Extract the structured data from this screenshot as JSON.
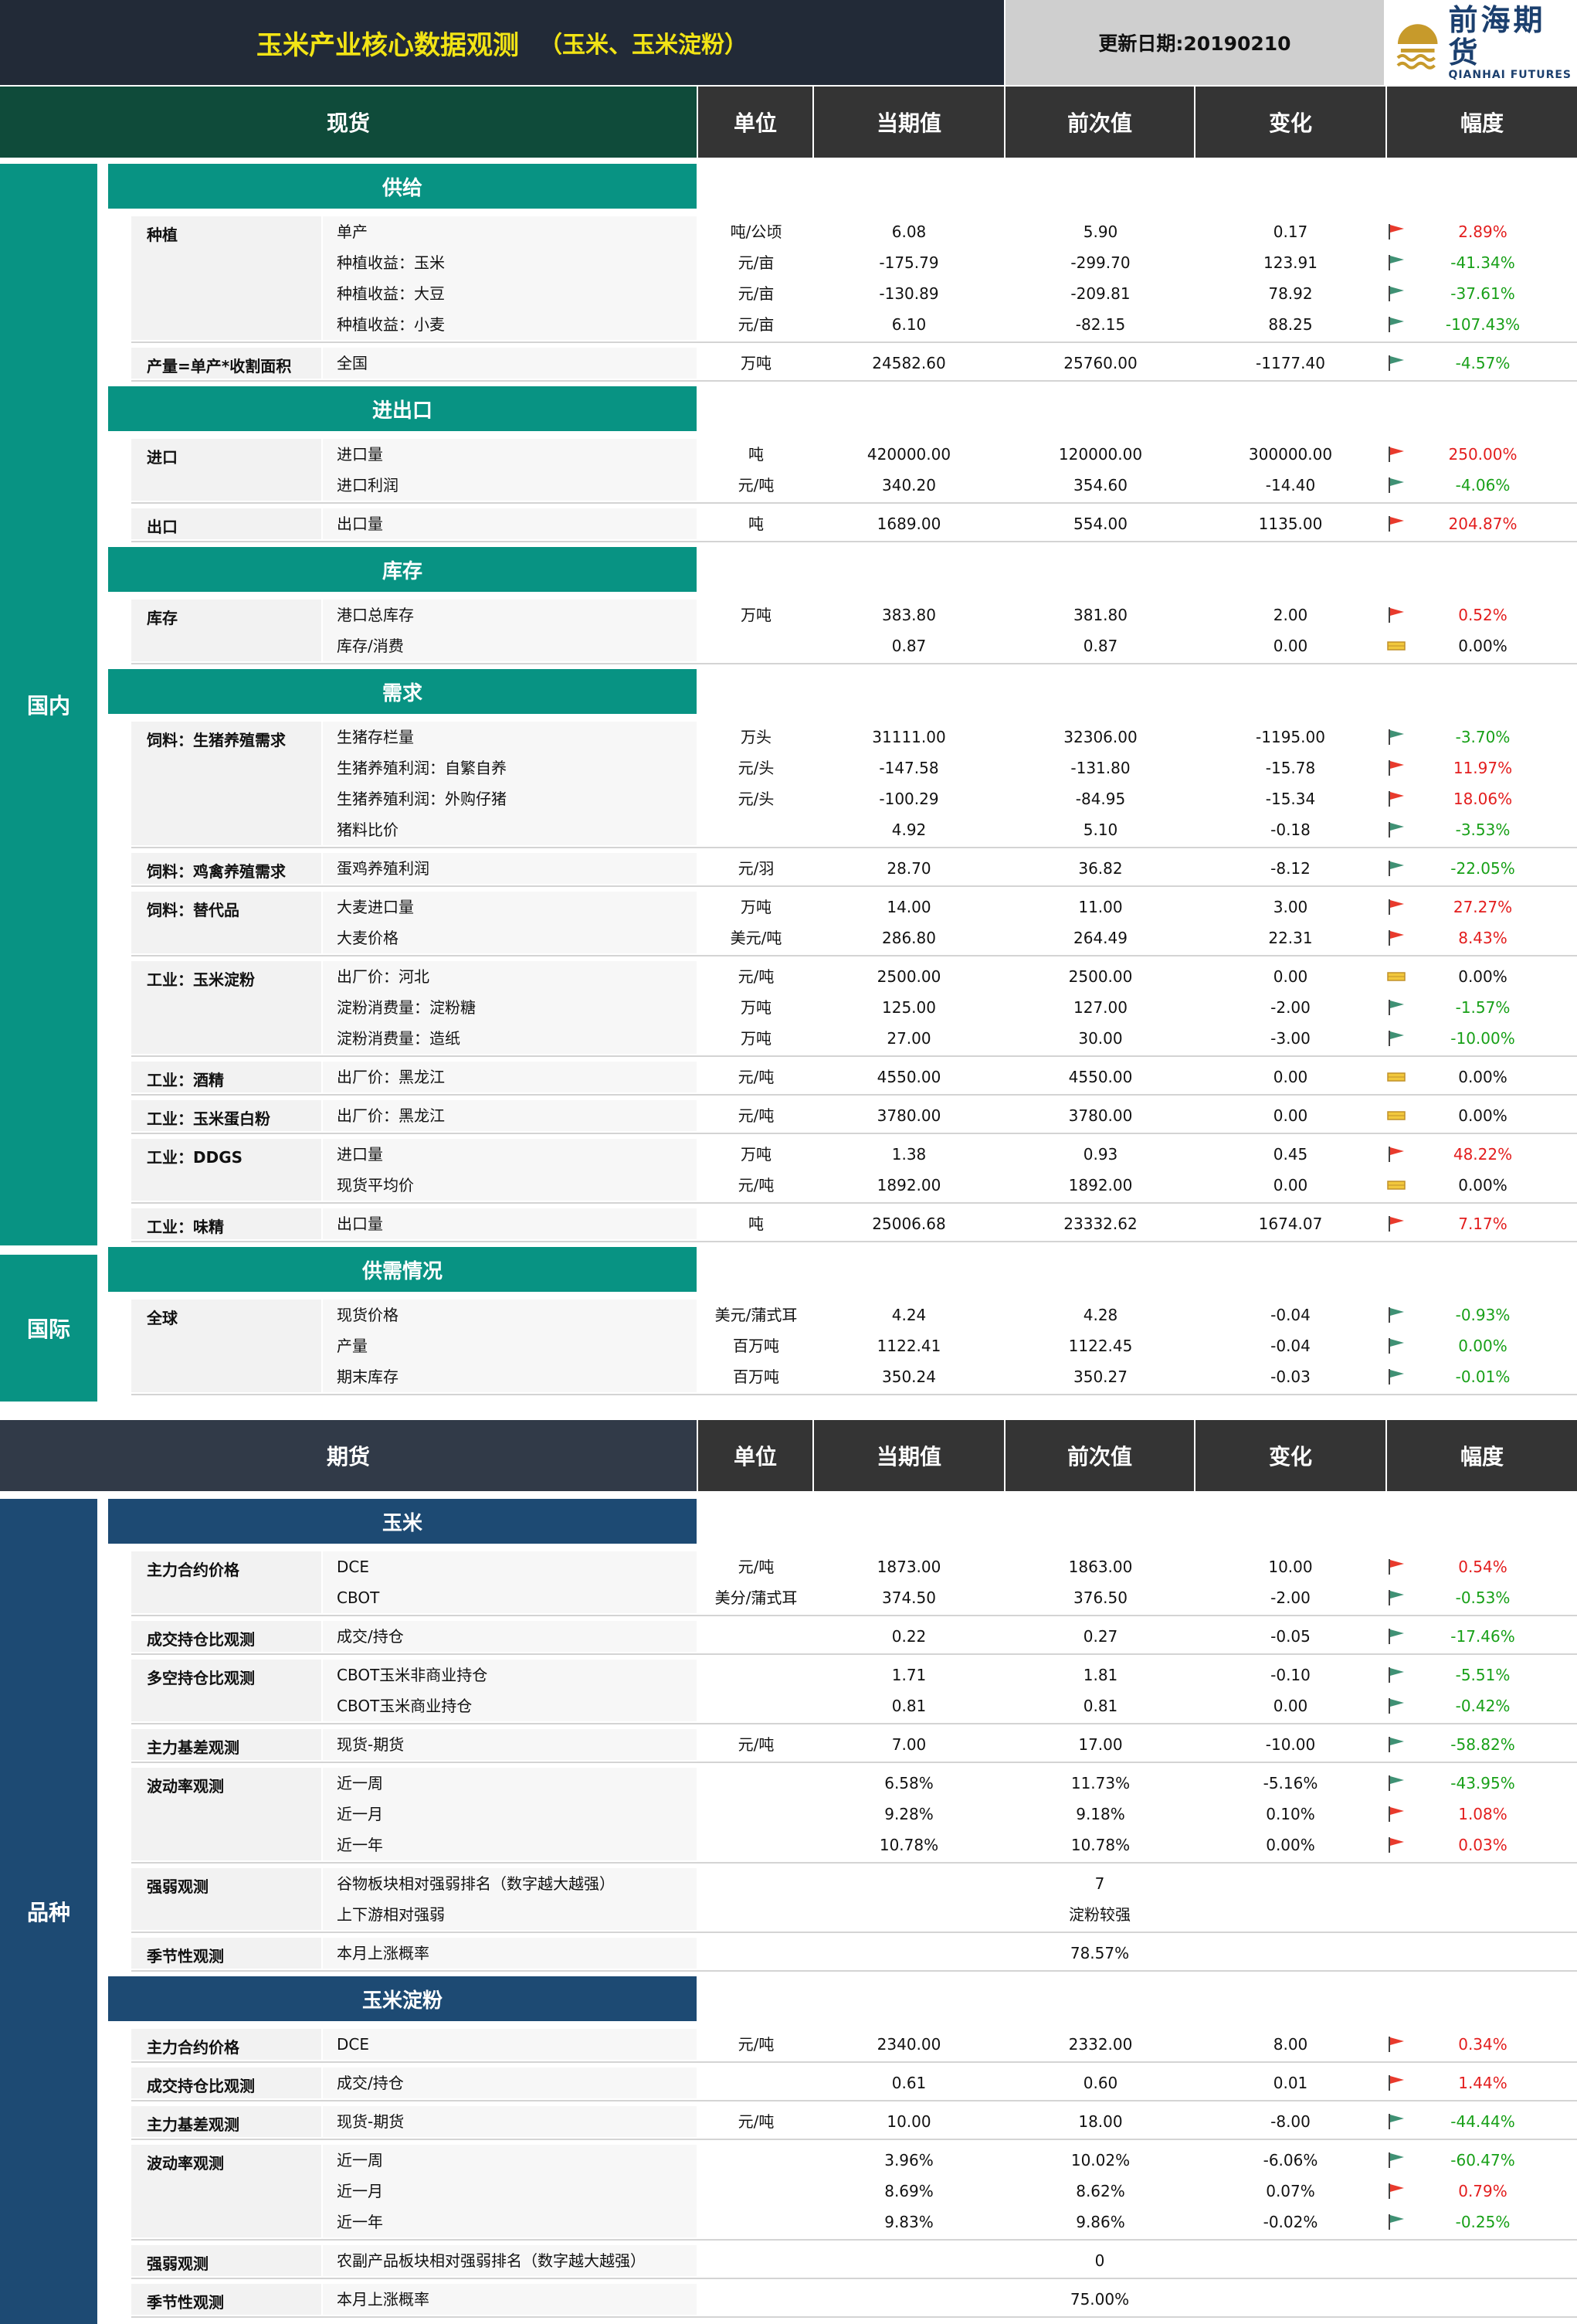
{
  "header": {
    "title": "玉米产业核心数据观测",
    "subtitle": "（玉米、玉米淀粉）",
    "update_date": "更新日期:20190210",
    "logo_cn": "前海期货",
    "logo_en": "QIANHAI FUTURES"
  },
  "colors": {
    "up": "#e31d1d",
    "down": "#18a018",
    "teal": "#089383",
    "navy": "#1d4a73"
  },
  "columns": {
    "unit": "单位",
    "current": "当期值",
    "previous": "前次值",
    "change": "变化",
    "pct": "幅度"
  },
  "spot": {
    "title": "现货",
    "domestic_label": "国内",
    "international_label": "国际",
    "categories": [
      {
        "name": "供给",
        "groups": [
          {
            "label": "种植",
            "rows": [
              {
                "item": "单产",
                "unit": "吨/公顷",
                "cur": "6.08",
                "prev": "5.90",
                "chg": "0.17",
                "pct": "2.89%",
                "dir": "up"
              },
              {
                "item": "种植收益：玉米",
                "unit": "元/亩",
                "cur": "-175.79",
                "prev": "-299.70",
                "chg": "123.91",
                "pct": "-41.34%",
                "dir": "down"
              },
              {
                "item": "种植收益：大豆",
                "unit": "元/亩",
                "cur": "-130.89",
                "prev": "-209.81",
                "chg": "78.92",
                "pct": "-37.61%",
                "dir": "down"
              },
              {
                "item": "种植收益：小麦",
                "unit": "元/亩",
                "cur": "6.10",
                "prev": "-82.15",
                "chg": "88.25",
                "pct": "-107.43%",
                "dir": "down"
              }
            ]
          },
          {
            "label": "产量=单产*收割面积",
            "rows": [
              {
                "item": "全国",
                "unit": "万吨",
                "cur": "24582.60",
                "prev": "25760.00",
                "chg": "-1177.40",
                "pct": "-4.57%",
                "dir": "down"
              }
            ]
          }
        ]
      },
      {
        "name": "进出口",
        "groups": [
          {
            "label": "进口",
            "rows": [
              {
                "item": "进口量",
                "unit": "吨",
                "cur": "420000.00",
                "prev": "120000.00",
                "chg": "300000.00",
                "pct": "250.00%",
                "dir": "up"
              },
              {
                "item": "进口利润",
                "unit": "元/吨",
                "cur": "340.20",
                "prev": "354.60",
                "chg": "-14.40",
                "pct": "-4.06%",
                "dir": "down"
              }
            ]
          },
          {
            "label": "出口",
            "rows": [
              {
                "item": "出口量",
                "unit": "吨",
                "cur": "1689.00",
                "prev": "554.00",
                "chg": "1135.00",
                "pct": "204.87%",
                "dir": "up"
              }
            ]
          }
        ]
      },
      {
        "name": "库存",
        "groups": [
          {
            "label": "库存",
            "rows": [
              {
                "item": "港口总库存",
                "unit": "万吨",
                "cur": "383.80",
                "prev": "381.80",
                "chg": "2.00",
                "pct": "0.52%",
                "dir": "up"
              },
              {
                "item": "库存/消费",
                "unit": "",
                "cur": "0.87",
                "prev": "0.87",
                "chg": "0.00",
                "pct": "0.00%",
                "dir": "flat"
              }
            ]
          }
        ]
      },
      {
        "name": "需求",
        "groups": [
          {
            "label": "饲料：生猪养殖需求",
            "rows": [
              {
                "item": "生猪存栏量",
                "unit": "万头",
                "cur": "31111.00",
                "prev": "32306.00",
                "chg": "-1195.00",
                "pct": "-3.70%",
                "dir": "down"
              },
              {
                "item": "生猪养殖利润：自繁自养",
                "unit": "元/头",
                "cur": "-147.58",
                "prev": "-131.80",
                "chg": "-15.78",
                "pct": "11.97%",
                "dir": "up"
              },
              {
                "item": "生猪养殖利润：外购仔猪",
                "unit": "元/头",
                "cur": "-100.29",
                "prev": "-84.95",
                "chg": "-15.34",
                "pct": "18.06%",
                "dir": "up"
              },
              {
                "item": "猪料比价",
                "unit": "",
                "cur": "4.92",
                "prev": "5.10",
                "chg": "-0.18",
                "pct": "-3.53%",
                "dir": "down"
              }
            ]
          },
          {
            "label": "饲料：鸡禽养殖需求",
            "rows": [
              {
                "item": "蛋鸡养殖利润",
                "unit": "元/羽",
                "cur": "28.70",
                "prev": "36.82",
                "chg": "-8.12",
                "pct": "-22.05%",
                "dir": "down"
              }
            ]
          },
          {
            "label": "饲料：替代品",
            "rows": [
              {
                "item": "大麦进口量",
                "unit": "万吨",
                "cur": "14.00",
                "prev": "11.00",
                "chg": "3.00",
                "pct": "27.27%",
                "dir": "up"
              },
              {
                "item": "大麦价格",
                "unit": "美元/吨",
                "cur": "286.80",
                "prev": "264.49",
                "chg": "22.31",
                "pct": "8.43%",
                "dir": "up"
              }
            ]
          },
          {
            "label": "工业：玉米淀粉",
            "rows": [
              {
                "item": "出厂价：河北",
                "unit": "元/吨",
                "cur": "2500.00",
                "prev": "2500.00",
                "chg": "0.00",
                "pct": "0.00%",
                "dir": "flat"
              },
              {
                "item": "淀粉消费量：淀粉糖",
                "unit": "万吨",
                "cur": "125.00",
                "prev": "127.00",
                "chg": "-2.00",
                "pct": "-1.57%",
                "dir": "down"
              },
              {
                "item": "淀粉消费量：造纸",
                "unit": "万吨",
                "cur": "27.00",
                "prev": "30.00",
                "chg": "-3.00",
                "pct": "-10.00%",
                "dir": "down"
              }
            ]
          },
          {
            "label": "工业：酒精",
            "rows": [
              {
                "item": "出厂价：黑龙江",
                "unit": "元/吨",
                "cur": "4550.00",
                "prev": "4550.00",
                "chg": "0.00",
                "pct": "0.00%",
                "dir": "flat"
              }
            ]
          },
          {
            "label": "工业：玉米蛋白粉",
            "rows": [
              {
                "item": "出厂价：黑龙江",
                "unit": "元/吨",
                "cur": "3780.00",
                "prev": "3780.00",
                "chg": "0.00",
                "pct": "0.00%",
                "dir": "flat"
              }
            ]
          },
          {
            "label": "工业：DDGS",
            "rows": [
              {
                "item": "进口量",
                "unit": "万吨",
                "cur": "1.38",
                "prev": "0.93",
                "chg": "0.45",
                "pct": "48.22%",
                "dir": "up"
              },
              {
                "item": "现货平均价",
                "unit": "元/吨",
                "cur": "1892.00",
                "prev": "1892.00",
                "chg": "0.00",
                "pct": "0.00%",
                "dir": "flat"
              }
            ]
          },
          {
            "label": "工业：味精",
            "rows": [
              {
                "item": "出口量",
                "unit": "吨",
                "cur": "25006.68",
                "prev": "23332.62",
                "chg": "1674.07",
                "pct": "7.17%",
                "dir": "up"
              }
            ]
          }
        ]
      },
      {
        "name": "供需情况",
        "groups": [
          {
            "label": "全球",
            "rows": [
              {
                "item": "现货价格",
                "unit": "美元/蒲式耳",
                "cur": "4.24",
                "prev": "4.28",
                "chg": "-0.04",
                "pct": "-0.93%",
                "dir": "down"
              },
              {
                "item": "产量",
                "unit": "百万吨",
                "cur": "1122.41",
                "prev": "1122.45",
                "chg": "-0.04",
                "pct": "0.00%",
                "dir": "down"
              },
              {
                "item": "期末库存",
                "unit": "百万吨",
                "cur": "350.24",
                "prev": "350.27",
                "chg": "-0.03",
                "pct": "-0.01%",
                "dir": "down"
              }
            ]
          }
        ]
      }
    ]
  },
  "futures": {
    "title": "期货",
    "variety_label": "品种",
    "categories": [
      {
        "name": "玉米",
        "groups": [
          {
            "label": "主力合约价格",
            "rows": [
              {
                "item": "DCE",
                "unit": "元/吨",
                "cur": "1873.00",
                "prev": "1863.00",
                "chg": "10.00",
                "pct": "0.54%",
                "dir": "up"
              },
              {
                "item": "CBOT",
                "unit": "美分/蒲式耳",
                "cur": "374.50",
                "prev": "376.50",
                "chg": "-2.00",
                "pct": "-0.53%",
                "dir": "down"
              }
            ]
          },
          {
            "label": "成交持仓比观测",
            "rows": [
              {
                "item": "成交/持仓",
                "unit": "",
                "cur": "0.22",
                "prev": "0.27",
                "chg": "-0.05",
                "pct": "-17.46%",
                "dir": "down"
              }
            ]
          },
          {
            "label": "多空持仓比观测",
            "rows": [
              {
                "item": "CBOT玉米非商业持仓",
                "unit": "",
                "cur": "1.71",
                "prev": "1.81",
                "chg": "-0.10",
                "pct": "-5.51%",
                "dir": "down"
              },
              {
                "item": "CBOT玉米商业持仓",
                "unit": "",
                "cur": "0.81",
                "prev": "0.81",
                "chg": "0.00",
                "pct": "-0.42%",
                "dir": "down"
              }
            ]
          },
          {
            "label": "主力基差观测",
            "rows": [
              {
                "item": "现货-期货",
                "unit": "元/吨",
                "cur": "7.00",
                "prev": "17.00",
                "chg": "-10.00",
                "pct": "-58.82%",
                "dir": "down"
              }
            ]
          },
          {
            "label": "波动率观测",
            "rows": [
              {
                "item": "近一周",
                "unit": "",
                "cur": "6.58%",
                "prev": "11.73%",
                "chg": "-5.16%",
                "pct": "-43.95%",
                "dir": "down"
              },
              {
                "item": "近一月",
                "unit": "",
                "cur": "9.28%",
                "prev": "9.18%",
                "chg": "0.10%",
                "pct": "1.08%",
                "dir": "up"
              },
              {
                "item": "近一年",
                "unit": "",
                "cur": "10.78%",
                "prev": "10.78%",
                "chg": "0.00%",
                "pct": "0.03%",
                "dir": "up"
              }
            ]
          },
          {
            "label": "强弱观测",
            "rows": [
              {
                "item": "谷物板块相对强弱排名（数字越大越强）",
                "merged": "7"
              },
              {
                "item": "上下游相对强弱",
                "merged": "淀粉较强"
              }
            ]
          },
          {
            "label": "季节性观测",
            "rows": [
              {
                "item": "本月上涨概率",
                "merged": "78.57%"
              }
            ]
          }
        ]
      },
      {
        "name": "玉米淀粉",
        "groups": [
          {
            "label": "主力合约价格",
            "rows": [
              {
                "item": "DCE",
                "unit": "元/吨",
                "cur": "2340.00",
                "prev": "2332.00",
                "chg": "8.00",
                "pct": "0.34%",
                "dir": "up"
              }
            ]
          },
          {
            "label": "成交持仓比观测",
            "rows": [
              {
                "item": "成交/持仓",
                "unit": "",
                "cur": "0.61",
                "prev": "0.60",
                "chg": "0.01",
                "pct": "1.44%",
                "dir": "up"
              }
            ]
          },
          {
            "label": "主力基差观测",
            "rows": [
              {
                "item": "现货-期货",
                "unit": "元/吨",
                "cur": "10.00",
                "prev": "18.00",
                "chg": "-8.00",
                "pct": "-44.44%",
                "dir": "down"
              }
            ]
          },
          {
            "label": "波动率观测",
            "rows": [
              {
                "item": "近一周",
                "unit": "",
                "cur": "3.96%",
                "prev": "10.02%",
                "chg": "-6.06%",
                "pct": "-60.47%",
                "dir": "down"
              },
              {
                "item": "近一月",
                "unit": "",
                "cur": "8.69%",
                "prev": "8.62%",
                "chg": "0.07%",
                "pct": "0.79%",
                "dir": "up"
              },
              {
                "item": "近一年",
                "unit": "",
                "cur": "9.83%",
                "prev": "9.86%",
                "chg": "-0.02%",
                "pct": "-0.25%",
                "dir": "down"
              }
            ]
          },
          {
            "label": "强弱观测",
            "rows": [
              {
                "item": "农副产品板块相对强弱排名（数字越大越强）",
                "merged": "0"
              }
            ]
          },
          {
            "label": "季节性观测",
            "rows": [
              {
                "item": "本月上涨概率",
                "merged": "75.00%"
              }
            ]
          }
        ]
      }
    ]
  }
}
